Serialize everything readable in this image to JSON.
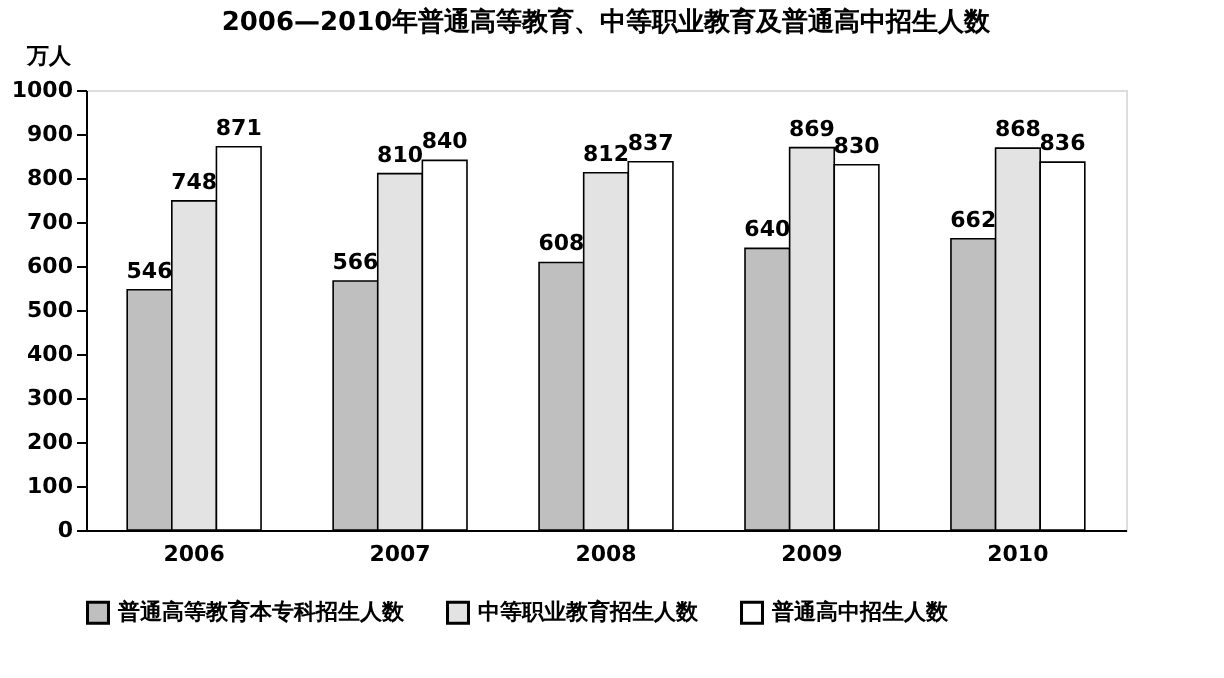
{
  "chart_data": {
    "type": "bar",
    "title": "2006—2010年普通高等教育、中等职业教育及普通高中招生人数",
    "ylabel": "万人",
    "categories": [
      "2006",
      "2007",
      "2008",
      "2009",
      "2010"
    ],
    "series": [
      {
        "name": "普通高等教育本专科招生人数",
        "color": "#bfbfbf",
        "values": [
          546,
          566,
          608,
          640,
          662
        ]
      },
      {
        "name": "中等职业教育招生人数",
        "color": "#e3e3e3",
        "values": [
          748,
          810,
          812,
          869,
          868
        ]
      },
      {
        "name": "普通高中招生人数",
        "color": "#ffffff",
        "values": [
          871,
          840,
          837,
          830,
          836
        ]
      }
    ],
    "ylim": [
      0,
      1000
    ],
    "yticks": [
      0,
      100,
      200,
      300,
      400,
      500,
      600,
      700,
      800,
      900,
      1000
    ],
    "data_labels": true,
    "grid": false,
    "legend": "bottom"
  }
}
